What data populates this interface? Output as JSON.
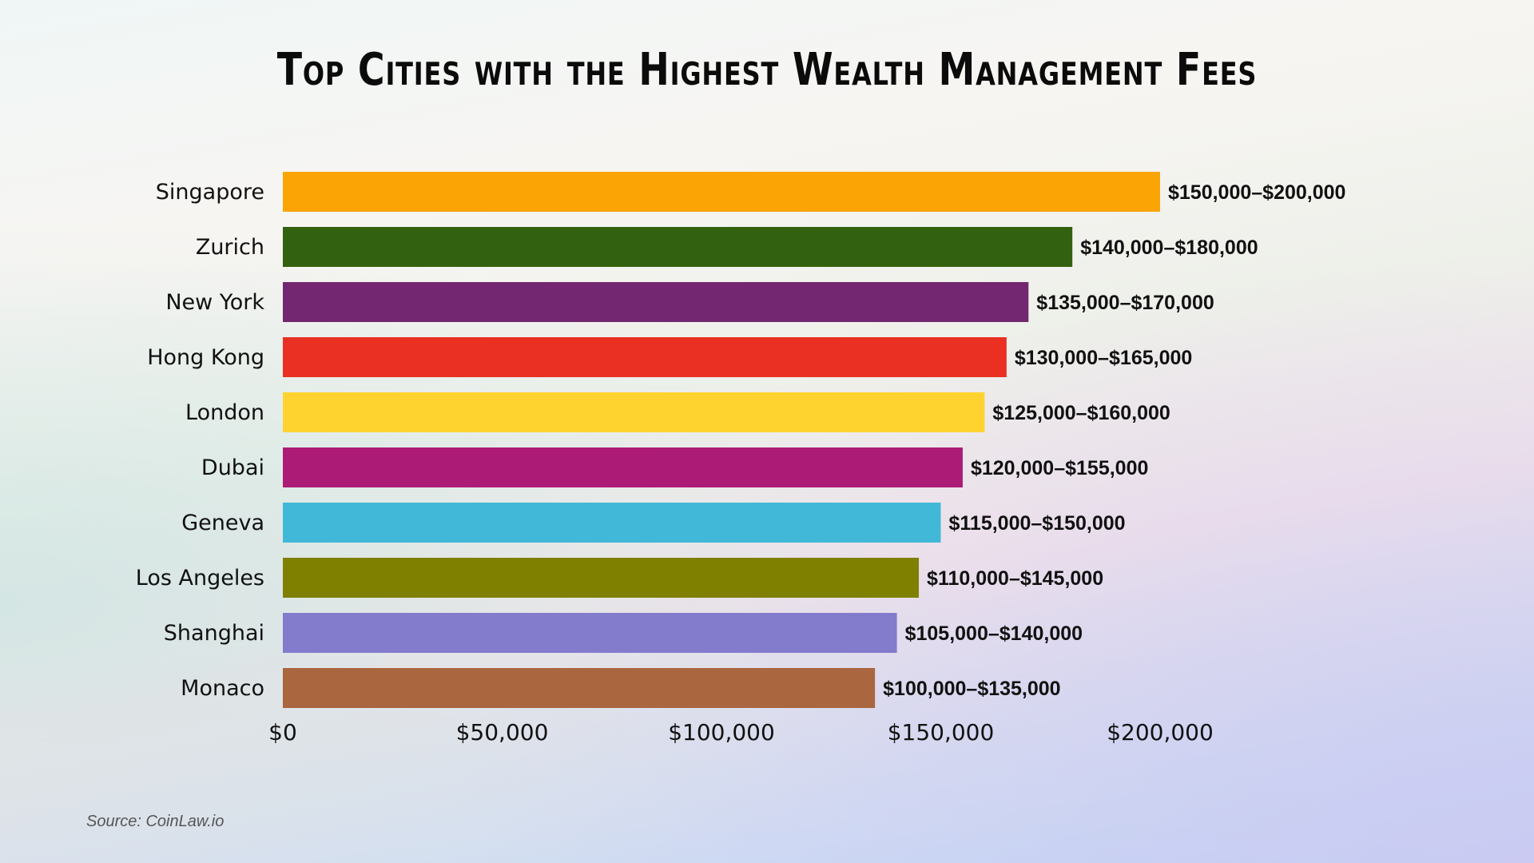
{
  "chart_data": {
    "type": "bar",
    "orientation": "horizontal",
    "title": "Top Cities with the Highest Wealth Management Fees",
    "categories": [
      "Singapore",
      "Zurich",
      "New York",
      "Hong Kong",
      "London",
      "Dubai",
      "Geneva",
      "Los Angeles",
      "Shanghai",
      "Monaco"
    ],
    "values": [
      200000,
      180000,
      170000,
      165000,
      160000,
      155000,
      150000,
      145000,
      140000,
      135000
    ],
    "data_labels": [
      "$150,000–$200,000",
      "$140,000–$180,000",
      "$135,000–$170,000",
      "$130,000–$165,000",
      "$125,000–$160,000",
      "$120,000–$155,000",
      "$115,000–$150,000",
      "$110,000–$145,000",
      "$105,000–$140,000",
      "$100,000–$135,000"
    ],
    "colors": [
      "#fba406",
      "#32620f",
      "#722770",
      "#e93022",
      "#fed330",
      "#ac1c77",
      "#41b8d7",
      "#7f7f00",
      "#837bcc",
      "#a9663f"
    ],
    "xlim": [
      0,
      200000
    ],
    "xticks": [
      0,
      50000,
      100000,
      150000,
      200000
    ],
    "xtick_labels": [
      "$0",
      "$50,000",
      "$100,000",
      "$150,000",
      "$200,000"
    ],
    "xlabel": "",
    "ylabel": "",
    "grid": false,
    "legend": "none"
  },
  "source": "Source: CoinLaw.io"
}
